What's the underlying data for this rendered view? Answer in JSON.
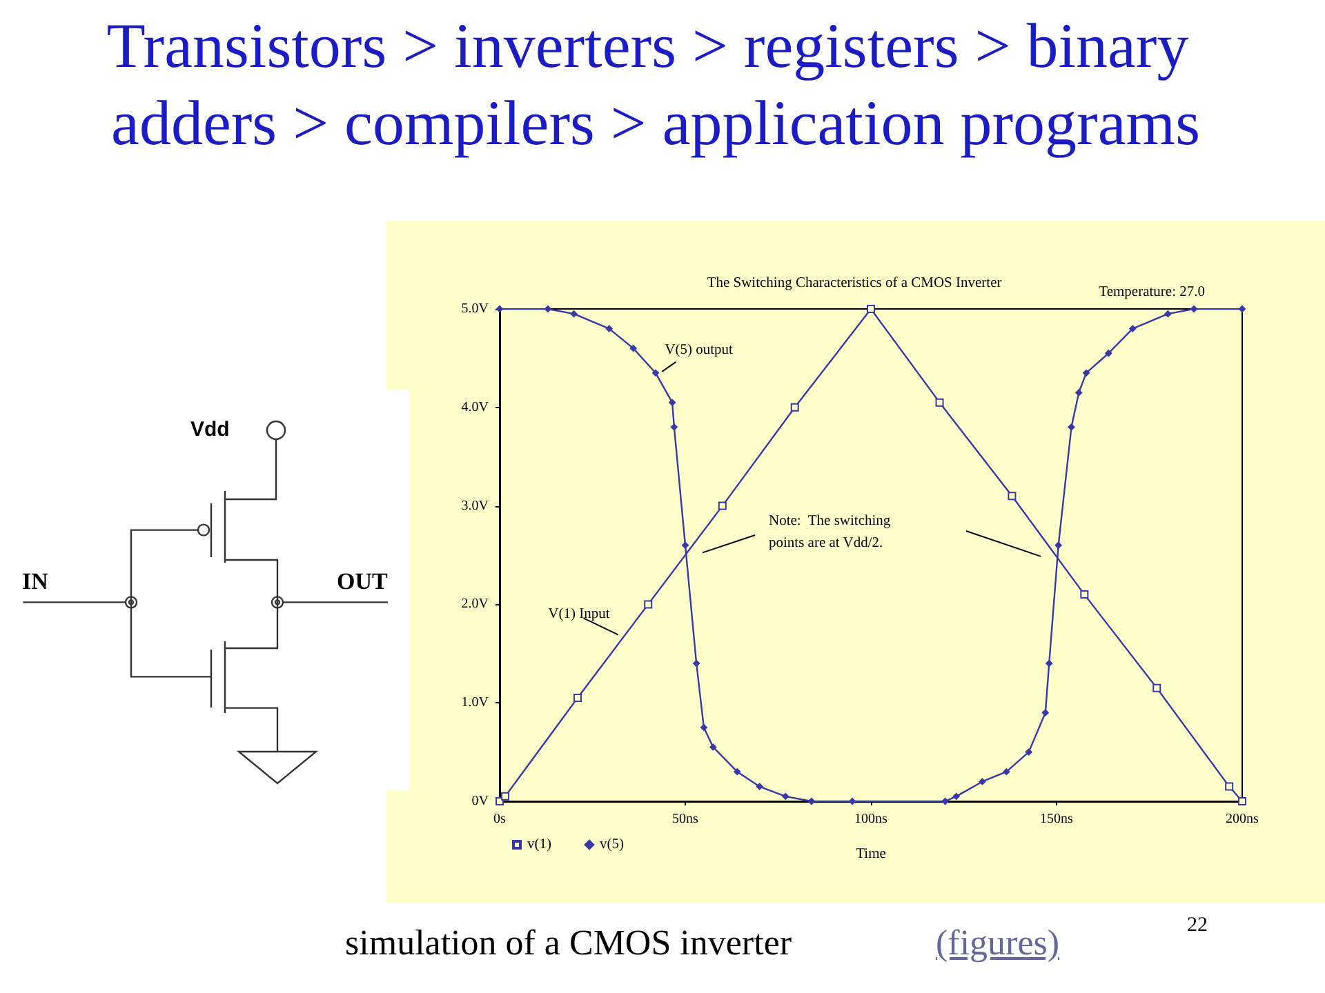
{
  "chart_data": {
    "type": "line",
    "title": "Transistors > inverters > registers > binary adders > compilers > application programs",
    "subtitle": "The Switching Characteristics of a CMOS Inverter",
    "xlabel": "Time",
    "xlim": [
      0,
      200
    ],
    "xticks": [
      {
        "value": 0,
        "label": "0s"
      },
      {
        "value": 50,
        "label": "50ns"
      },
      {
        "value": 100,
        "label": "100ns"
      },
      {
        "value": 150,
        "label": "150ns"
      },
      {
        "value": 200,
        "label": "200ns"
      }
    ],
    "ylim": [
      0,
      5
    ],
    "yticks": [
      {
        "value": 0,
        "label": "0V"
      },
      {
        "value": 1,
        "label": "1.0V"
      },
      {
        "value": 2,
        "label": "2.0V"
      },
      {
        "value": 3,
        "label": "3.0V"
      },
      {
        "value": 4,
        "label": "4.0V"
      },
      {
        "value": 5,
        "label": "5.0V"
      }
    ],
    "legend": "bottom left",
    "series": [
      {
        "name": "v(1)",
        "color": "#3838a8",
        "marker": "square",
        "x": [
          0,
          1.5,
          21,
          40,
          60,
          79.5,
          100,
          118.5,
          138,
          157.5,
          177,
          196.5,
          200
        ],
        "values": [
          0,
          0.05,
          1.05,
          2,
          3,
          4,
          5,
          4.05,
          3.1,
          2.1,
          1.15,
          0.15,
          0
        ]
      },
      {
        "name": "v(5)",
        "color": "#3838a8",
        "marker": "diamond",
        "x": [
          0,
          13,
          20,
          29.5,
          36,
          42,
          46.5,
          47,
          50,
          53,
          55,
          57.5,
          64,
          70,
          77,
          84,
          95,
          120,
          123,
          130,
          136.5,
          142.5,
          147,
          148,
          150.5,
          154,
          156,
          158,
          164,
          170.5,
          180,
          187,
          200
        ],
        "values": [
          5,
          5,
          4.95,
          4.8,
          4.6,
          4.35,
          4.05,
          3.8,
          2.6,
          1.4,
          0.75,
          0.55,
          0.3,
          0.15,
          0.05,
          0,
          0,
          0,
          0.05,
          0.2,
          0.3,
          0.5,
          0.9,
          1.4,
          2.6,
          3.8,
          4.15,
          4.35,
          4.55,
          4.8,
          4.95,
          5,
          5
        ]
      }
    ],
    "annotations": [
      "Temperature: 27.0",
      {
        "text": "V(5) output",
        "x": 43,
        "y": 4.35
      },
      {
        "text": "V(1) Input",
        "x": 33,
        "y": 1.65
      },
      "Note:  The switching\npoints are at Vdd/2.",
      "simulation of a CMOS inverter",
      "(figures)",
      "22",
      "Vdd",
      "IN",
      "OUT"
    ]
  }
}
